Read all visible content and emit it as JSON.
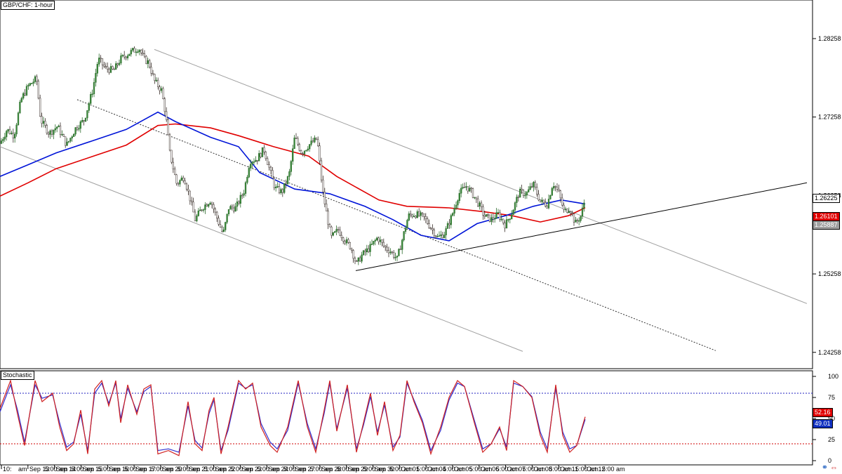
{
  "instrument_title": "GBP/CHF: 1-hour",
  "indicator_title": "Stochastic",
  "colors": {
    "up": "#2c6b2c",
    "down": "#3a2f2a",
    "ma_fast": "#0014d8",
    "ma_slow": "#e00000",
    "stoch_k": "#d02020",
    "stoch_d": "#3030d0",
    "overbought": "#2020c0",
    "oversold": "#d00000",
    "trend": "#000000",
    "channel": "#a0a0a0"
  },
  "price_tags": [
    {
      "name": "last-price-tag",
      "text": "1.26225",
      "bg": "#ffffff",
      "fg": "#000000"
    },
    {
      "name": "ma-slow-tag",
      "text": "1.26101",
      "bg": "#e00000",
      "fg": "#ffffff"
    },
    {
      "name": "grey-tag",
      "text": "1.25887",
      "bg": "#a0a0a0",
      "fg": "#ffffff"
    }
  ],
  "stoch_tags": [
    {
      "name": "stoch-k-tag",
      "text": "52.16",
      "bg": "#e00000",
      "fg": "#ffffff"
    },
    {
      "name": "stoch-d-tag",
      "text": "49.01",
      "bg": "#1030c0",
      "fg": "#ffffff"
    }
  ],
  "corner_icons": [
    "link-icon",
    "arrows-icon"
  ],
  "chart_data": {
    "type": "candlestick",
    "title": "GBP/CHF: 1-hour",
    "price_axis": {
      "ticks": [
        1.28258,
        1.27258,
        1.26258,
        1.25258,
        1.24258
      ],
      "range": [
        1.2405,
        1.2875
      ]
    },
    "stoch_axis": {
      "ticks": [
        100,
        75,
        50,
        25,
        0
      ],
      "levels": [
        80,
        20
      ]
    },
    "x_labels": [
      "10:",
      "Sep 13",
      "Sep 14",
      "Sep 15",
      "Sep 16",
      "Sep 17",
      "Sep 20",
      "Sep 21",
      "Sep 22",
      "Sep 23",
      "Sep 24",
      "Sep 27",
      "Sep 28",
      "Sep 29",
      "Sep 30",
      "Oct 01",
      "Oct 04",
      "Oct 05",
      "Oct 06",
      "Oct 07",
      "Oct 08",
      "Oct 11",
      "Oct 12"
    ],
    "x_sublabels": [
      "am",
      "5:00 am",
      "5:00 am",
      "5:00 am",
      "5:00 am",
      "5:00 am",
      "5:00 am",
      "5:00 am",
      "5:00 am",
      "5:00 am",
      "5:00 am",
      "5:00 am",
      "5:00 am",
      "5:00 am",
      "5:00 am",
      "5:00 am",
      "5:00 am",
      "5:00 am",
      "5:00 am",
      "5:00 am",
      "5:00 am",
      "5:00 am",
      "5:00 am"
    ],
    "close_path": [
      [
        0,
        1.2692
      ],
      [
        10,
        1.271
      ],
      [
        20,
        1.2702
      ],
      [
        30,
        1.2748
      ],
      [
        40,
        1.2765
      ],
      [
        52,
        1.2775
      ],
      [
        58,
        1.2722
      ],
      [
        70,
        1.2705
      ],
      [
        82,
        1.2714
      ],
      [
        95,
        1.269
      ],
      [
        108,
        1.2712
      ],
      [
        120,
        1.2722
      ],
      [
        132,
        1.276
      ],
      [
        140,
        1.28
      ],
      [
        150,
        1.2788
      ],
      [
        162,
        1.2785
      ],
      [
        172,
        1.28
      ],
      [
        185,
        1.2808
      ],
      [
        198,
        1.2814
      ],
      [
        205,
        1.28
      ],
      [
        212,
        1.2795
      ],
      [
        220,
        1.2772
      ],
      [
        230,
        1.276
      ],
      [
        236,
        1.273
      ],
      [
        242,
        1.268
      ],
      [
        252,
        1.264
      ],
      [
        262,
        1.265
      ],
      [
        270,
        1.2625
      ],
      [
        278,
        1.2595
      ],
      [
        288,
        1.261
      ],
      [
        300,
        1.262
      ],
      [
        308,
        1.26
      ],
      [
        318,
        1.2576
      ],
      [
        326,
        1.261
      ],
      [
        336,
        1.261
      ],
      [
        348,
        1.2632
      ],
      [
        356,
        1.267
      ],
      [
        366,
        1.2672
      ],
      [
        376,
        1.2685
      ],
      [
        384,
        1.266
      ],
      [
        392,
        1.2635
      ],
      [
        402,
        1.263
      ],
      [
        412,
        1.2652
      ],
      [
        420,
        1.27
      ],
      [
        430,
        1.268
      ],
      [
        440,
        1.269
      ],
      [
        452,
        1.2698
      ],
      [
        460,
        1.263
      ],
      [
        466,
        1.26
      ],
      [
        472,
        1.2572
      ],
      [
        482,
        1.2582
      ],
      [
        492,
        1.2568
      ],
      [
        500,
        1.256
      ],
      [
        508,
        1.2538
      ],
      [
        516,
        1.255
      ],
      [
        528,
        1.256
      ],
      [
        538,
        1.2572
      ],
      [
        548,
        1.256
      ],
      [
        556,
        1.2555
      ],
      [
        566,
        1.2545
      ],
      [
        574,
        1.2572
      ],
      [
        582,
        1.26
      ],
      [
        592,
        1.2602
      ],
      [
        604,
        1.2598
      ],
      [
        614,
        1.2585
      ],
      [
        624,
        1.2572
      ],
      [
        634,
        1.2578
      ],
      [
        644,
        1.26
      ],
      [
        654,
        1.2628
      ],
      [
        664,
        1.2638
      ],
      [
        672,
        1.263
      ],
      [
        682,
        1.2615
      ],
      [
        690,
        1.26
      ],
      [
        700,
        1.2595
      ],
      [
        710,
        1.2602
      ],
      [
        720,
        1.2588
      ],
      [
        730,
        1.2605
      ],
      [
        740,
        1.263
      ],
      [
        750,
        1.2628
      ],
      [
        760,
        1.264
      ],
      [
        770,
        1.2618
      ],
      [
        780,
        1.2614
      ],
      [
        788,
        1.2642
      ],
      [
        796,
        1.263
      ],
      [
        804,
        1.2605
      ],
      [
        812,
        1.261
      ],
      [
        820,
        1.259
      ],
      [
        828,
        1.26
      ],
      [
        834,
        1.26225
      ]
    ],
    "ma_fast": [
      [
        0,
        1.265
      ],
      [
        40,
        1.2665
      ],
      [
        80,
        1.268
      ],
      [
        130,
        1.2695
      ],
      [
        180,
        1.271
      ],
      [
        225,
        1.2732
      ],
      [
        250,
        1.272
      ],
      [
        300,
        1.27
      ],
      [
        340,
        1.2688
      ],
      [
        370,
        1.2655
      ],
      [
        420,
        1.2634
      ],
      [
        470,
        1.2628
      ],
      [
        520,
        1.2612
      ],
      [
        560,
        1.2595
      ],
      [
        600,
        1.2575
      ],
      [
        640,
        1.2568
      ],
      [
        680,
        1.259
      ],
      [
        720,
        1.26
      ],
      [
        760,
        1.2612
      ],
      [
        800,
        1.262
      ],
      [
        834,
        1.2615
      ]
    ],
    "ma_slow": [
      [
        0,
        1.2625
      ],
      [
        40,
        1.2642
      ],
      [
        80,
        1.266
      ],
      [
        130,
        1.2675
      ],
      [
        180,
        1.269
      ],
      [
        225,
        1.2715
      ],
      [
        250,
        1.2717
      ],
      [
        300,
        1.2712
      ],
      [
        340,
        1.2702
      ],
      [
        390,
        1.2688
      ],
      [
        440,
        1.2676
      ],
      [
        480,
        1.265
      ],
      [
        540,
        1.262
      ],
      [
        580,
        1.2612
      ],
      [
        640,
        1.261
      ],
      [
        690,
        1.2605
      ],
      [
        730,
        1.26
      ],
      [
        770,
        1.2592
      ],
      [
        810,
        1.26
      ],
      [
        834,
        1.26101
      ]
    ],
    "trendline": [
      [
        507,
        1.253
      ],
      [
        1150,
        1.2642
      ]
    ],
    "channel_upper": [
      [
        220,
        1.2812
      ],
      [
        1150,
        1.2488
      ]
    ],
    "channel_mid": [
      [
        110,
        1.2748
      ],
      [
        1020,
        1.2428
      ]
    ],
    "channel_lower": [
      [
        0,
        1.2688
      ],
      [
        745,
        1.2427
      ]
    ],
    "stochastic_k": [
      [
        0,
        62
      ],
      [
        15,
        95
      ],
      [
        25,
        55
      ],
      [
        35,
        18
      ],
      [
        50,
        95
      ],
      [
        60,
        70
      ],
      [
        75,
        80
      ],
      [
        85,
        40
      ],
      [
        95,
        12
      ],
      [
        105,
        20
      ],
      [
        115,
        60
      ],
      [
        125,
        8
      ],
      [
        135,
        85
      ],
      [
        145,
        95
      ],
      [
        155,
        65
      ],
      [
        165,
        95
      ],
      [
        172,
        45
      ],
      [
        182,
        90
      ],
      [
        195,
        55
      ],
      [
        205,
        85
      ],
      [
        215,
        90
      ],
      [
        225,
        8
      ],
      [
        240,
        12
      ],
      [
        255,
        6
      ],
      [
        268,
        70
      ],
      [
        278,
        20
      ],
      [
        288,
        12
      ],
      [
        298,
        60
      ],
      [
        305,
        75
      ],
      [
        315,
        8
      ],
      [
        325,
        40
      ],
      [
        340,
        95
      ],
      [
        350,
        85
      ],
      [
        360,
        92
      ],
      [
        372,
        40
      ],
      [
        385,
        18
      ],
      [
        395,
        10
      ],
      [
        410,
        40
      ],
      [
        425,
        95
      ],
      [
        438,
        40
      ],
      [
        450,
        10
      ],
      [
        462,
        60
      ],
      [
        470,
        95
      ],
      [
        480,
        35
      ],
      [
        495,
        90
      ],
      [
        508,
        10
      ],
      [
        518,
        45
      ],
      [
        528,
        80
      ],
      [
        538,
        30
      ],
      [
        548,
        70
      ],
      [
        560,
        12
      ],
      [
        570,
        30
      ],
      [
        580,
        95
      ],
      [
        590,
        70
      ],
      [
        602,
        45
      ],
      [
        614,
        8
      ],
      [
        628,
        40
      ],
      [
        640,
        75
      ],
      [
        652,
        95
      ],
      [
        662,
        88
      ],
      [
        676,
        45
      ],
      [
        688,
        10
      ],
      [
        700,
        20
      ],
      [
        712,
        40
      ],
      [
        722,
        12
      ],
      [
        732,
        95
      ],
      [
        745,
        88
      ],
      [
        758,
        75
      ],
      [
        770,
        30
      ],
      [
        780,
        10
      ],
      [
        792,
        90
      ],
      [
        802,
        30
      ],
      [
        812,
        10
      ],
      [
        822,
        18
      ],
      [
        834,
        52
      ]
    ],
    "stochastic_d": [
      [
        0,
        58
      ],
      [
        15,
        90
      ],
      [
        25,
        60
      ],
      [
        35,
        22
      ],
      [
        50,
        90
      ],
      [
        60,
        74
      ],
      [
        75,
        78
      ],
      [
        85,
        45
      ],
      [
        95,
        16
      ],
      [
        105,
        22
      ],
      [
        115,
        55
      ],
      [
        125,
        12
      ],
      [
        135,
        80
      ],
      [
        145,
        92
      ],
      [
        155,
        68
      ],
      [
        165,
        92
      ],
      [
        172,
        50
      ],
      [
        182,
        86
      ],
      [
        195,
        58
      ],
      [
        205,
        82
      ],
      [
        215,
        88
      ],
      [
        225,
        12
      ],
      [
        240,
        14
      ],
      [
        255,
        10
      ],
      [
        268,
        65
      ],
      [
        278,
        24
      ],
      [
        288,
        15
      ],
      [
        298,
        56
      ],
      [
        305,
        72
      ],
      [
        315,
        12
      ],
      [
        325,
        36
      ],
      [
        340,
        92
      ],
      [
        350,
        86
      ],
      [
        360,
        90
      ],
      [
        372,
        44
      ],
      [
        385,
        22
      ],
      [
        395,
        14
      ],
      [
        410,
        36
      ],
      [
        425,
        92
      ],
      [
        438,
        44
      ],
      [
        450,
        14
      ],
      [
        462,
        56
      ],
      [
        470,
        92
      ],
      [
        480,
        38
      ],
      [
        495,
        86
      ],
      [
        508,
        14
      ],
      [
        518,
        42
      ],
      [
        528,
        76
      ],
      [
        538,
        34
      ],
      [
        548,
        66
      ],
      [
        560,
        16
      ],
      [
        570,
        28
      ],
      [
        580,
        92
      ],
      [
        590,
        72
      ],
      [
        602,
        48
      ],
      [
        614,
        12
      ],
      [
        628,
        36
      ],
      [
        640,
        72
      ],
      [
        652,
        92
      ],
      [
        662,
        88
      ],
      [
        676,
        48
      ],
      [
        688,
        14
      ],
      [
        700,
        20
      ],
      [
        712,
        38
      ],
      [
        722,
        16
      ],
      [
        732,
        92
      ],
      [
        745,
        88
      ],
      [
        758,
        76
      ],
      [
        770,
        34
      ],
      [
        780,
        14
      ],
      [
        792,
        86
      ],
      [
        802,
        34
      ],
      [
        812,
        14
      ],
      [
        822,
        18
      ],
      [
        834,
        49
      ]
    ]
  }
}
